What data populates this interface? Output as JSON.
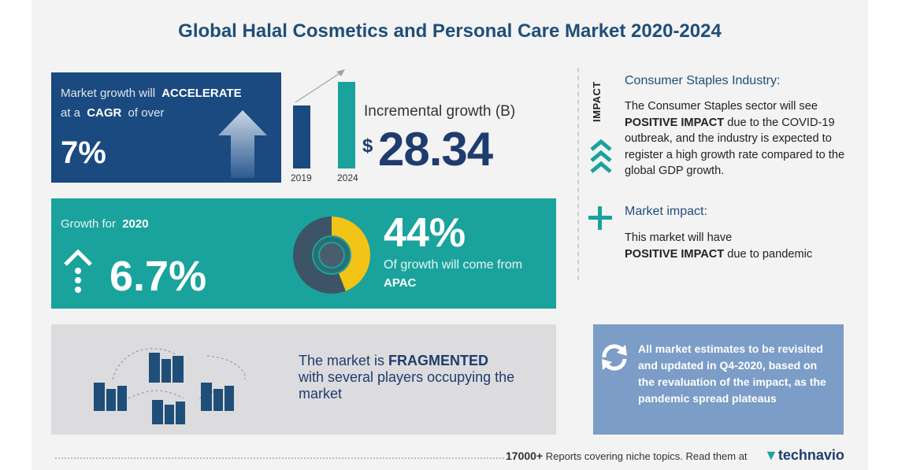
{
  "title": "Global Halal Cosmetics and Personal Care Market 2020-2024",
  "cagr_card": {
    "line1_prefix": "Market growth will",
    "line1_bold": "ACCELERATE",
    "line2_prefix": "at a",
    "line2_bold": "CAGR",
    "line2_suffix": "of over",
    "value": "7%"
  },
  "incremental": {
    "label": "Incremental growth (B)",
    "currency": "$",
    "value": "28.34",
    "years": [
      "2019",
      "2024"
    ]
  },
  "growth_card": {
    "label": "Growth for",
    "year": "2020",
    "value": "6.7%",
    "share_pct": "44%",
    "share_text": "Of growth will come from",
    "region": "APAC",
    "share_fraction": 0.44
  },
  "fragment_card": {
    "prefix": "The market is",
    "bold": "FRAGMENTED",
    "rest": "with several players occupying the market"
  },
  "impact": {
    "vertical_label": "IMPACT",
    "consumer_head": "Consumer Staples Industry:",
    "consumer_body_1": "The Consumer Staples sector will see",
    "consumer_body_bold": "POSITIVE IMPACT",
    "consumer_body_2": "due to the COVID-19 outbreak, and the industry is expected to register a high growth rate compared to the global GDP growth.",
    "market_head": "Market impact:",
    "market_body_1": "This market will have",
    "market_body_bold": "POSITIVE IMPACT",
    "market_body_2": "due to pandemic"
  },
  "estimates": {
    "text": "All market estimates to be revisited and updated in Q4-2020, based on the revaluation of the impact, as the pandemic spread plateaus"
  },
  "footer": {
    "count": "17000+",
    "text": "Reports covering niche topics. Read them at",
    "brand": "technavio"
  },
  "colors": {
    "navy": "#1a4a80",
    "teal": "#1aa39c",
    "yellow": "#f2c418",
    "slate": "#7b9dc7"
  }
}
